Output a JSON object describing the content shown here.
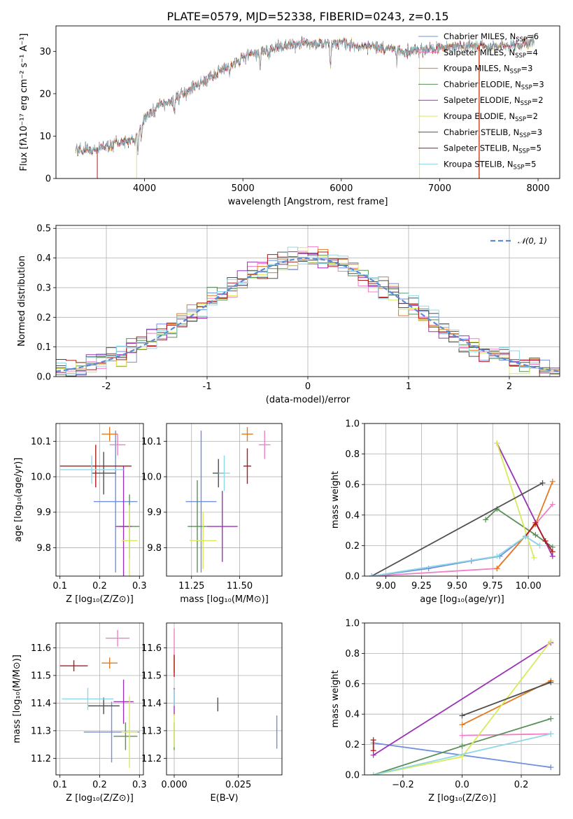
{
  "figure_title": "PLATE=0579, MJD=52338, FIBERID=0243, z=0.15",
  "series_colors": [
    "#6f8fe0",
    "#f07fc8",
    "#e27b21",
    "#5a8f58",
    "#9b33b5",
    "#d9ea5b",
    "#505050",
    "#b01a1a",
    "#8fd8e6"
  ],
  "chart_data": [
    {
      "id": "spectrum",
      "type": "line",
      "title": "PLATE=0579, MJD=52338, FIBERID=0243, z=0.15",
      "xlabel": "wavelength [Angstrom, rest frame]",
      "ylabel": "Flux [fλ10⁻¹⁷ erg cm⁻² s⁻¹ A⁻¹]",
      "xlim": [
        3100,
        8220
      ],
      "ylim": [
        0,
        36
      ],
      "xticks": [
        4000,
        5000,
        6000,
        7000,
        8000
      ],
      "yticks": [
        0,
        10,
        20,
        30
      ],
      "continuum": [
        [
          3300,
          6.8
        ],
        [
          3500,
          7.0
        ],
        [
          3700,
          8.0
        ],
        [
          3900,
          9.2
        ],
        [
          3980,
          13.5
        ],
        [
          4100,
          16.5
        ],
        [
          4300,
          18.5
        ],
        [
          4500,
          21.5
        ],
        [
          4700,
          24.5
        ],
        [
          4900,
          27.0
        ],
        [
          5100,
          29.5
        ],
        [
          5300,
          30.5
        ],
        [
          5500,
          31.5
        ],
        [
          5700,
          32.0
        ],
        [
          5900,
          32.0
        ],
        [
          6100,
          31.5
        ],
        [
          6300,
          31.0
        ],
        [
          6500,
          30.5
        ],
        [
          6700,
          30.0
        ],
        [
          6900,
          30.5
        ],
        [
          7100,
          31.0
        ],
        [
          7300,
          31.5
        ],
        [
          7500,
          31.0
        ],
        [
          7700,
          31.5
        ],
        [
          7900,
          32.0
        ]
      ],
      "absorption_features": [
        [
          3933,
          4.5
        ],
        [
          3968,
          4.0
        ],
        [
          4101,
          1.5
        ],
        [
          4304,
          3.0
        ],
        [
          4861,
          2.0
        ],
        [
          5175,
          4.5
        ],
        [
          5270,
          1.5
        ],
        [
          5890,
          6.0
        ],
        [
          6563,
          2.5
        ]
      ],
      "legend": [
        {
          "label": "Chabrier MILES, N",
          "sub": "SSP",
          "suffix": "=6",
          "color": "#6f8fe0"
        },
        {
          "label": "Salpeter MILES, N",
          "sub": "SSP",
          "suffix": "=4",
          "color": "#f07fc8"
        },
        {
          "label": "Kroupa MILES, N",
          "sub": "SSP",
          "suffix": "=3",
          "color": "#e27b21"
        },
        {
          "label": "Chabrier ELODIE, N",
          "sub": "SSP",
          "suffix": "=3",
          "color": "#5a8f58"
        },
        {
          "label": "Salpeter ELODIE, N",
          "sub": "SSP",
          "suffix": "=2",
          "color": "#9b33b5"
        },
        {
          "label": "Kroupa ELODIE, N",
          "sub": "SSP",
          "suffix": "=2",
          "color": "#d9ea5b"
        },
        {
          "label": "Chabrier STELIB, N",
          "sub": "SSP",
          "suffix": "=3",
          "color": "#505050"
        },
        {
          "label": "Salpeter STELIB, N",
          "sub": "SSP",
          "suffix": "=5",
          "color": "#b01a1a"
        },
        {
          "label": "Kroupa STELIB, N",
          "sub": "SSP",
          "suffix": "=5",
          "color": "#8fd8e6"
        }
      ]
    },
    {
      "id": "residuals",
      "type": "step-histogram",
      "xlabel": "(data-model)/error",
      "ylabel": "Normed distribution",
      "xlim": [
        -2.5,
        2.5
      ],
      "ylim": [
        0,
        0.51
      ],
      "xticks": [
        -2,
        -1,
        0,
        1,
        2
      ],
      "yticks": [
        0.0,
        0.1,
        0.2,
        0.3,
        0.4,
        0.5
      ],
      "bin_width": 0.1,
      "reference_label": "𝒩(0, 1)",
      "grid": true
    },
    {
      "id": "z_vs_age",
      "type": "errorbar",
      "xlabel": "Z [log₁₀(Z/Z⊙)]",
      "ylabel": "age  [log₁₀(age/yr)]",
      "xlim": [
        0.09,
        0.31
      ],
      "ylim": [
        9.72,
        10.15
      ],
      "xticks": [
        0.1,
        0.2,
        0.3
      ],
      "yticks": [
        9.8,
        9.9,
        10.0,
        10.1
      ],
      "points": [
        {
          "x": 0.24,
          "y": 9.93,
          "xerr": 0.055,
          "yerr": 0.2,
          "color": "#6f8fe0"
        },
        {
          "x": 0.245,
          "y": 10.09,
          "xerr": 0.02,
          "yerr": 0.03,
          "color": "#f07fc8"
        },
        {
          "x": 0.225,
          "y": 10.12,
          "xerr": 0.02,
          "yerr": 0.02,
          "color": "#e27b21"
        },
        {
          "x": 0.275,
          "y": 9.86,
          "xerr": 0.025,
          "yerr": 0.09,
          "color": "#5a8f58"
        },
        {
          "x": 0.26,
          "y": 9.86,
          "xerr": 0.02,
          "yerr": 0.17,
          "color": "#9b33b5"
        },
        {
          "x": 0.275,
          "y": 9.82,
          "xerr": 0.02,
          "yerr": 0.1,
          "color": "#d9ea5b"
        },
        {
          "x": 0.21,
          "y": 10.01,
          "xerr": 0.03,
          "yerr": 0.06,
          "color": "#505050"
        },
        {
          "x": 0.19,
          "y": 10.03,
          "xerr": 0.09,
          "yerr": 0.06,
          "color": "#b01a1a"
        },
        {
          "x": 0.18,
          "y": 10.02,
          "xerr": 0.08,
          "yerr": 0.04,
          "color": "#8fd8e6"
        }
      ]
    },
    {
      "id": "mass_vs_age",
      "type": "errorbar",
      "xlabel": "mass [log₁₀(M/M⊙)]",
      "xlim": [
        11.12,
        11.72
      ],
      "ylim": [
        9.72,
        10.15
      ],
      "xticks": [
        11.25,
        11.5
      ],
      "xtick_labels": [
        "11.25",
        "11.50"
      ],
      "yticks": [
        9.8,
        9.9,
        10.0,
        10.1
      ],
      "points": [
        {
          "x": 11.3,
          "y": 9.93,
          "xerr": 0.08,
          "yerr": 0.2,
          "color": "#6f8fe0"
        },
        {
          "x": 11.63,
          "y": 10.09,
          "xerr": 0.03,
          "yerr": 0.04,
          "color": "#f07fc8"
        },
        {
          "x": 11.54,
          "y": 10.12,
          "xerr": 0.03,
          "yerr": 0.02,
          "color": "#e27b21"
        },
        {
          "x": 11.28,
          "y": 9.86,
          "xerr": 0.05,
          "yerr": 0.13,
          "color": "#5a8f58"
        },
        {
          "x": 11.41,
          "y": 9.86,
          "xerr": 0.08,
          "yerr": 0.1,
          "color": "#9b33b5"
        },
        {
          "x": 11.31,
          "y": 9.82,
          "xerr": 0.07,
          "yerr": 0.08,
          "color": "#d9ea5b"
        },
        {
          "x": 11.39,
          "y": 10.01,
          "xerr": 0.03,
          "yerr": 0.04,
          "color": "#505050"
        },
        {
          "x": 11.54,
          "y": 10.03,
          "xerr": 0.02,
          "yerr": 0.05,
          "color": "#b01a1a"
        },
        {
          "x": 11.42,
          "y": 10.01,
          "xerr": 0.03,
          "yerr": 0.05,
          "color": "#8fd8e6"
        }
      ]
    },
    {
      "id": "age_vs_weight",
      "type": "line",
      "xlabel": "age  [log₁₀(age/yr)]",
      "ylabel": "mass weight",
      "xlim": [
        8.85,
        10.22
      ],
      "ylim": [
        0,
        1.0
      ],
      "xticks": [
        9.0,
        9.25,
        9.5,
        9.75,
        10.0
      ],
      "xtick_labels": [
        "9.00",
        "9.25",
        "9.50",
        "9.75",
        "10.00"
      ],
      "yticks": [
        0.0,
        0.2,
        0.4,
        0.6,
        0.8,
        1.0
      ],
      "series": [
        {
          "color": "#6f8fe0",
          "points": [
            [
              8.9,
              0.0
            ],
            [
              9.3,
              0.05
            ],
            [
              9.6,
              0.1
            ],
            [
              9.8,
              0.13
            ],
            [
              9.98,
              0.26
            ],
            [
              10.08,
              0.2
            ]
          ]
        },
        {
          "color": "#f07fc8",
          "points": [
            [
              8.9,
              0.0
            ],
            [
              9.78,
              0.05
            ],
            [
              10.05,
              0.34
            ],
            [
              10.17,
              0.47
            ]
          ]
        },
        {
          "color": "#e27b21",
          "points": [
            [
              9.78,
              0.05
            ],
            [
              10.05,
              0.34
            ],
            [
              10.17,
              0.62
            ]
          ]
        },
        {
          "color": "#5a8f58",
          "points": [
            [
              9.7,
              0.37
            ],
            [
              9.78,
              0.44
            ],
            [
              10.05,
              0.27
            ],
            [
              10.17,
              0.19
            ]
          ]
        },
        {
          "color": "#9b33b5",
          "points": [
            [
              9.78,
              0.87
            ],
            [
              10.17,
              0.13
            ]
          ]
        },
        {
          "color": "#d9ea5b",
          "points": [
            [
              9.78,
              0.87
            ],
            [
              10.04,
              0.12
            ]
          ]
        },
        {
          "color": "#505050",
          "points": [
            [
              8.9,
              0.0
            ],
            [
              10.1,
              0.61
            ]
          ]
        },
        {
          "color": "#b01a1a",
          "points": [
            [
              9.98,
              0.26
            ],
            [
              10.05,
              0.35
            ],
            [
              10.12,
              0.23
            ],
            [
              10.17,
              0.16
            ]
          ]
        },
        {
          "color": "#8fd8e6",
          "points": [
            [
              8.9,
              0.0
            ],
            [
              9.78,
              0.13
            ],
            [
              9.98,
              0.26
            ],
            [
              10.08,
              0.2
            ]
          ]
        }
      ]
    },
    {
      "id": "z_vs_mass",
      "type": "errorbar",
      "xlabel": "Z [log₁₀(Z/Z⊙)]",
      "ylabel": "mass [log₁₀(M/M⊙)]",
      "xlim": [
        0.09,
        0.31
      ],
      "ylim": [
        11.14,
        11.69
      ],
      "xticks": [
        0.1,
        0.2,
        0.3
      ],
      "yticks": [
        11.2,
        11.3,
        11.4,
        11.5,
        11.6
      ],
      "points": [
        {
          "x": 0.23,
          "y": 11.295,
          "xerr": 0.07,
          "yerr": 0.11,
          "color": "#6f8fe0"
        },
        {
          "x": 0.245,
          "y": 11.635,
          "xerr": 0.03,
          "yerr": 0.03,
          "color": "#f07fc8"
        },
        {
          "x": 0.225,
          "y": 11.545,
          "xerr": 0.02,
          "yerr": 0.02,
          "color": "#e27b21"
        },
        {
          "x": 0.265,
          "y": 11.28,
          "xerr": 0.03,
          "yerr": 0.05,
          "color": "#5a8f58"
        },
        {
          "x": 0.26,
          "y": 11.405,
          "xerr": 0.025,
          "yerr": 0.08,
          "color": "#9b33b5"
        },
        {
          "x": 0.275,
          "y": 11.295,
          "xerr": 0.02,
          "yerr": 0.13,
          "color": "#d9ea5b"
        },
        {
          "x": 0.21,
          "y": 11.39,
          "xerr": 0.04,
          "yerr": 0.03,
          "color": "#505050"
        },
        {
          "x": 0.135,
          "y": 11.535,
          "xerr": 0.035,
          "yerr": 0.02,
          "color": "#b01a1a"
        },
        {
          "x": 0.17,
          "y": 11.415,
          "xerr": 0.065,
          "yerr": 0.04,
          "color": "#8fd8e6"
        }
      ]
    },
    {
      "id": "ebv_vs_mass",
      "type": "errorbar",
      "xlabel": "E(B-V)",
      "xlim": [
        -0.003,
        0.042
      ],
      "ylim": [
        11.14,
        11.69
      ],
      "xticks": [
        0.0,
        0.025
      ],
      "xtick_labels": [
        "0.000",
        "0.025"
      ],
      "yticks": [
        11.2,
        11.3,
        11.4,
        11.5,
        11.6
      ],
      "points": [
        {
          "x": 0.04,
          "y": 11.295,
          "xerr": 0,
          "yerr": 0.06,
          "color": "#6f8fe0"
        },
        {
          "x": 0.0,
          "y": 11.62,
          "xerr": 0,
          "yerr": 0.05,
          "color": "#f07fc8"
        },
        {
          "x": 0.0,
          "y": 11.54,
          "xerr": 0,
          "yerr": 0.03,
          "color": "#e27b21"
        },
        {
          "x": 0.0,
          "y": 11.28,
          "xerr": 0,
          "yerr": 0.05,
          "color": "#5a8f58"
        },
        {
          "x": 0.0,
          "y": 11.405,
          "xerr": 0,
          "yerr": 0.05,
          "color": "#9b33b5"
        },
        {
          "x": 0.0,
          "y": 11.3,
          "xerr": 0,
          "yerr": 0.06,
          "color": "#d9ea5b"
        },
        {
          "x": 0.017,
          "y": 11.395,
          "xerr": 0,
          "yerr": 0.025,
          "color": "#505050"
        },
        {
          "x": 0.0,
          "y": 11.535,
          "xerr": 0,
          "yerr": 0.04,
          "color": "#b01a1a"
        },
        {
          "x": 0.0,
          "y": 11.42,
          "xerr": 0,
          "yerr": 0.03,
          "color": "#8fd8e6"
        }
      ]
    },
    {
      "id": "z_vs_weight",
      "type": "line",
      "xlabel": "Z [log₁₀(Z/Z⊙)]",
      "ylabel": "mass weight",
      "xlim": [
        -0.33,
        0.33
      ],
      "ylim": [
        0,
        1.0
      ],
      "xticks": [
        -0.2,
        0.0,
        0.2
      ],
      "xtick_labels": [
        "−0.2",
        "0.0",
        "0.2"
      ],
      "yticks": [
        0.0,
        0.2,
        0.4,
        0.6,
        0.8,
        1.0
      ],
      "series": [
        {
          "color": "#6f8fe0",
          "points": [
            [
              -0.3,
              0.21
            ],
            [
              0.3,
              0.05
            ]
          ]
        },
        {
          "color": "#f07fc8",
          "points": [
            [
              0.0,
              0.26
            ],
            [
              0.3,
              0.27
            ]
          ]
        },
        {
          "color": "#e27b21",
          "points": [
            [
              0.0,
              0.33
            ],
            [
              0.3,
              0.62
            ]
          ]
        },
        {
          "color": "#5a8f58",
          "points": [
            [
              -0.3,
              0.0
            ],
            [
              0.0,
              0.19
            ],
            [
              0.3,
              0.37
            ]
          ]
        },
        {
          "color": "#9b33b5",
          "points": [
            [
              -0.3,
              0.13
            ],
            [
              0.3,
              0.87
            ]
          ]
        },
        {
          "color": "#d9ea5b",
          "points": [
            [
              -0.3,
              0.0
            ],
            [
              0.0,
              0.12
            ],
            [
              0.3,
              0.88
            ]
          ]
        },
        {
          "color": "#505050",
          "points": [
            [
              0.0,
              0.39
            ],
            [
              0.3,
              0.61
            ]
          ]
        },
        {
          "color": "#b01a1a",
          "points": [
            [
              -0.3,
              0.23
            ],
            [
              -0.3,
              0.16
            ]
          ]
        },
        {
          "color": "#8fd8e6",
          "points": [
            [
              -0.3,
              0.0
            ],
            [
              0.3,
              0.27
            ]
          ]
        }
      ]
    }
  ]
}
